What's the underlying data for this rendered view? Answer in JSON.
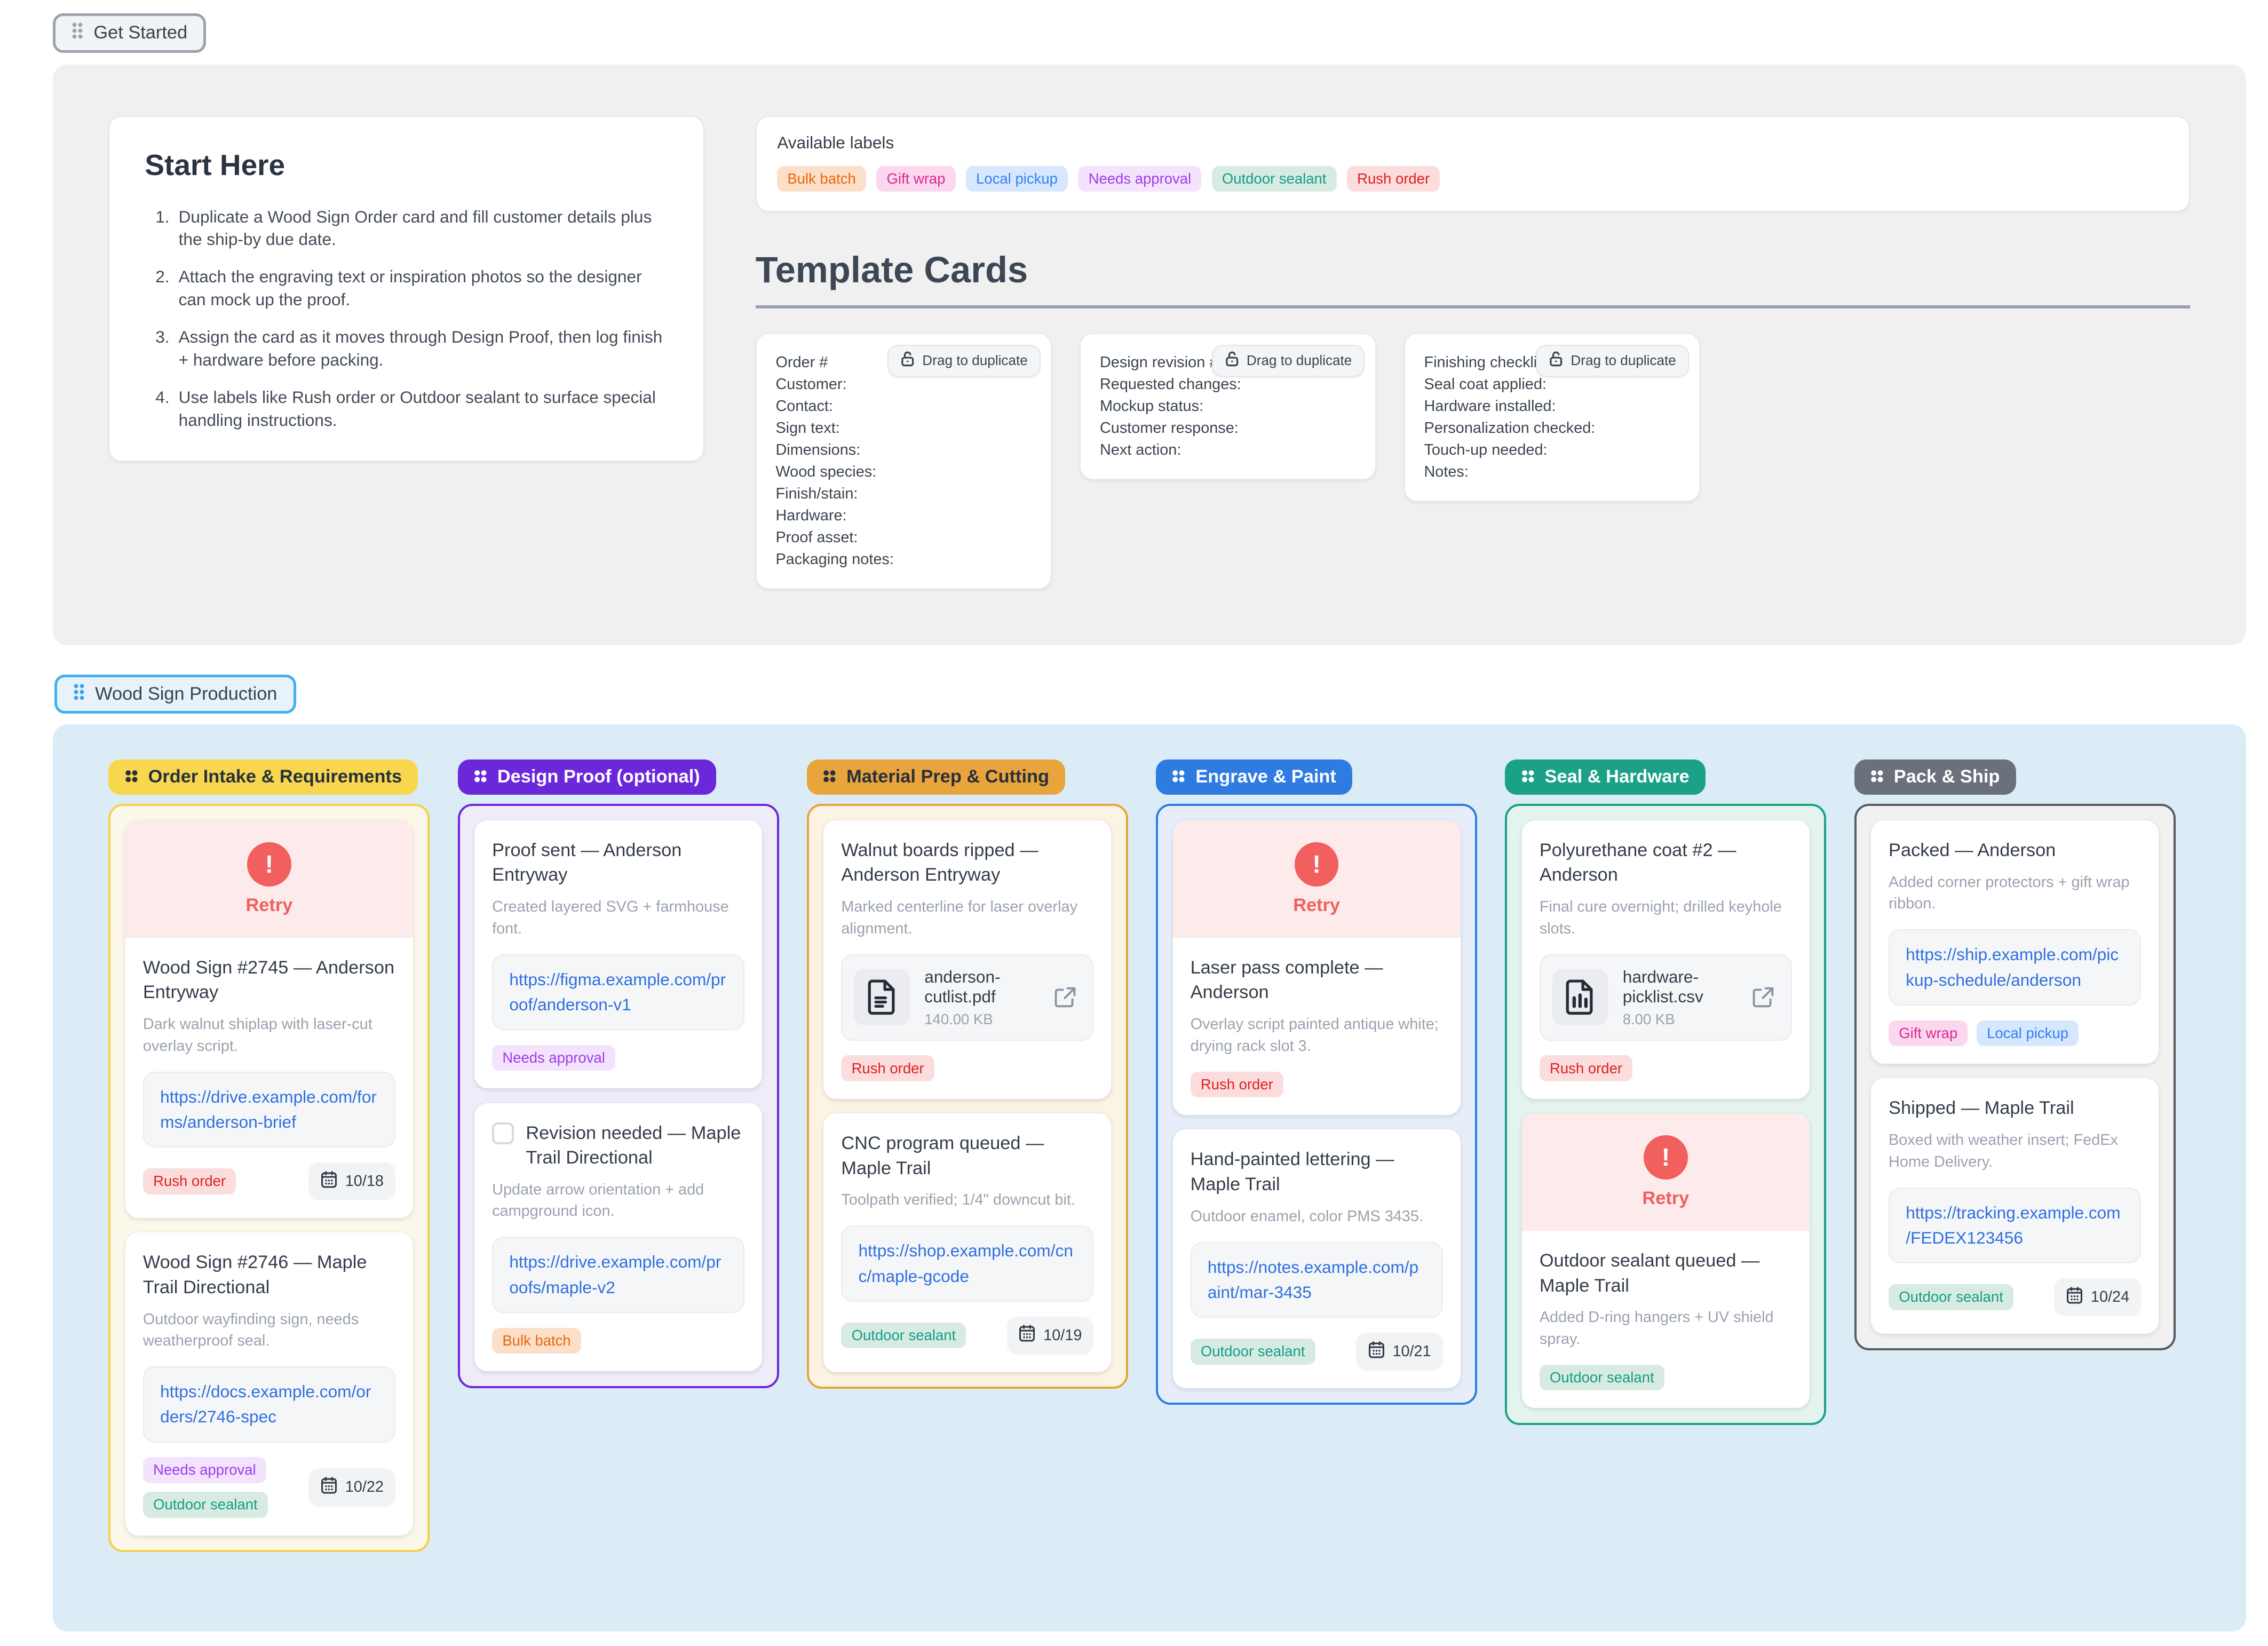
{
  "page": {
    "get_started_label": "Get Started",
    "board_badge_label": "Wood Sign Production"
  },
  "colors": {
    "top_panel_bg": "#f0f0f1",
    "board_panel_bg": "#dcecf7",
    "link": "#2e6fe0",
    "retry_accent": "#f15f5f",
    "retry_bg": "#fdeaea"
  },
  "start_here": {
    "title": "Start Here",
    "steps": [
      "Duplicate a Wood Sign Order card and fill customer details plus the ship-by due date.",
      "Attach the engraving text or inspiration photos so the designer can mock up the proof.",
      "Assign the card as it moves through Design Proof, then log finish + hardware before packing.",
      "Use labels like Rush order or Outdoor sealant to surface special handling instructions."
    ]
  },
  "available_labels": {
    "title": "Available labels",
    "labels": [
      {
        "name": "Bulk batch",
        "fg": "#ea670c",
        "bg": "#fcdfc9"
      },
      {
        "name": "Gift wrap",
        "fg": "#db2793",
        "bg": "#fbd8ee"
      },
      {
        "name": "Local pickup",
        "fg": "#2f80f5",
        "bg": "#d7e7fd"
      },
      {
        "name": "Needs approval",
        "fg": "#a13bea",
        "bg": "#f3e3fd"
      },
      {
        "name": "Outdoor sealant",
        "fg": "#149e84",
        "bg": "#d7ebe3"
      },
      {
        "name": "Rush order",
        "fg": "#e02020",
        "bg": "#fbdddd"
      }
    ]
  },
  "template_cards": {
    "title": "Template Cards",
    "drag_chip_label": "Drag to duplicate",
    "cards": [
      {
        "lines": [
          "Order #",
          "Customer:",
          "Contact:",
          "Sign text:",
          "Dimensions:",
          "Wood species:",
          "Finish/stain:",
          "Hardware:",
          "Proof asset:",
          "Packaging notes:"
        ]
      },
      {
        "lines": [
          "Design revision #",
          "Requested changes:",
          "Mockup status:",
          "Customer response:",
          "Next action:"
        ]
      },
      {
        "lines": [
          "Finishing checklist",
          "Seal coat applied:",
          "Hardware installed:",
          "Personalization checked:",
          "Touch-up needed:",
          "Notes:"
        ]
      }
    ]
  },
  "board": {
    "retry_label": "Retry",
    "columns": [
      {
        "title": "Order Intake & Requirements",
        "header_bg": "#f8d74e",
        "header_fg": "#27303d",
        "border": "#f3d147",
        "bg": "#fbf7e9",
        "cards": [
          {
            "retry": true,
            "title": "Wood Sign #2745 — Anderson Entryway",
            "desc": "Dark walnut shiplap with laser-cut overlay script.",
            "link": "https://drive.example.com/forms/anderson-brief",
            "labels": [
              "Rush order"
            ],
            "date": "10/18"
          },
          {
            "title": "Wood Sign #2746 — Maple Trail Directional",
            "desc": "Outdoor wayfinding sign, needs weatherproof seal.",
            "link": "https://docs.example.com/orders/2746-spec",
            "labels": [
              "Needs approval",
              "Outdoor sealant"
            ],
            "date": "10/22"
          }
        ]
      },
      {
        "title": "Design Proof (optional)",
        "header_bg": "#6b28da",
        "header_fg": "#ffffff",
        "border": "#6b28da",
        "bg": "#f0ebf9",
        "cards": [
          {
            "title": "Proof sent — Anderson Entryway",
            "desc": "Created layered SVG + farmhouse font.",
            "link": "https://figma.example.com/proof/anderson-v1",
            "labels": [
              "Needs approval"
            ]
          },
          {
            "checkbox": true,
            "title": "Revision needed — Maple Trail Directional",
            "desc": "Update arrow orientation + add campground icon.",
            "link": "https://drive.example.com/proofs/maple-v2",
            "labels": [
              "Bulk batch"
            ]
          }
        ]
      },
      {
        "title": "Material Prep & Cutting",
        "header_bg": "#e9a43c",
        "header_fg": "#27303d",
        "border": "#e9a43c",
        "bg": "#fbf3e3",
        "cards": [
          {
            "title": "Walnut boards ripped — Anderson Entryway",
            "desc": "Marked centerline for laser overlay alignment.",
            "attachment": {
              "name": "anderson-cutlist.pdf",
              "size": "140.00 KB",
              "kind": "doc"
            },
            "labels": [
              "Rush order"
            ]
          },
          {
            "title": "CNC program queued — Maple Trail",
            "desc": "Toolpath verified; 1/4\" downcut bit.",
            "link": "https://shop.example.com/cnc/maple-gcode",
            "labels": [
              "Outdoor sealant"
            ],
            "date": "10/19"
          }
        ]
      },
      {
        "title": "Engrave & Paint",
        "header_bg": "#2e7ce1",
        "header_fg": "#ffffff",
        "border": "#2e7ce1",
        "bg": "#e7eefa",
        "cards": [
          {
            "retry": true,
            "title": "Laser pass complete — Anderson",
            "desc": "Overlay script painted antique white; drying rack slot 3.",
            "labels": [
              "Rush order"
            ]
          },
          {
            "title": "Hand-painted lettering — Maple Trail",
            "desc": "Outdoor enamel, color PMS 3435.",
            "link": "https://notes.example.com/paint/mar-3435",
            "labels": [
              "Outdoor sealant"
            ],
            "date": "10/21"
          }
        ]
      },
      {
        "title": "Seal & Hardware",
        "header_bg": "#1aa187",
        "header_fg": "#ffffff",
        "border": "#1aa187",
        "bg": "#e5f3ee",
        "cards": [
          {
            "title": "Polyurethane coat #2 — Anderson",
            "desc": "Final cure overnight; drilled keyhole slots.",
            "attachment": {
              "name": "hardware-picklist.csv",
              "size": "8.00 KB",
              "kind": "sheet"
            },
            "labels": [
              "Rush order"
            ]
          },
          {
            "retry": true,
            "title": "Outdoor sealant queued — Maple Trail",
            "desc": "Added D-ring hangers + UV shield spray.",
            "labels": [
              "Outdoor sealant"
            ]
          }
        ]
      },
      {
        "title": "Pack & Ship",
        "header_bg": "#6a717b",
        "header_fg": "#ffffff",
        "border": "#555b64",
        "bg": "#f1f1f2",
        "cards": [
          {
            "title": "Packed — Anderson",
            "desc": "Added corner protectors + gift wrap ribbon.",
            "link": "https://ship.example.com/pickup-schedule/anderson",
            "labels": [
              "Gift wrap",
              "Local pickup"
            ]
          },
          {
            "title": "Shipped — Maple Trail",
            "desc": "Boxed with weather insert; FedEx Home Delivery.",
            "link": "https://tracking.example.com/FEDEX123456",
            "labels": [
              "Outdoor sealant"
            ],
            "date": "10/24"
          }
        ]
      }
    ]
  }
}
